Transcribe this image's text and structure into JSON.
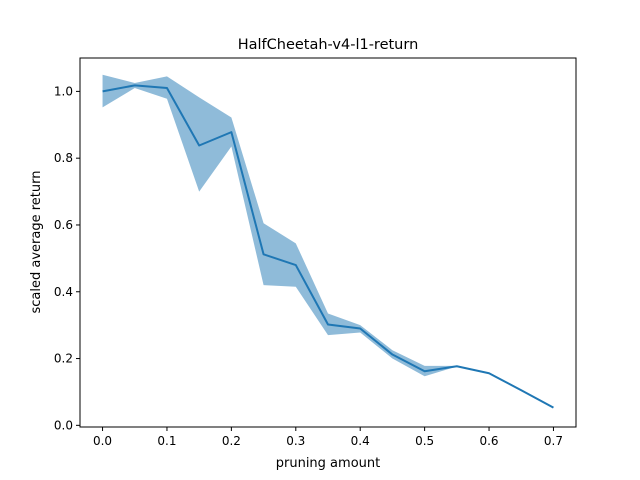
{
  "chart_data": {
    "type": "line",
    "title": "HalfCheetah-v4-l1-return",
    "xlabel": "pruning amount",
    "ylabel": "scaled average return",
    "xlim": [
      -0.035,
      0.735
    ],
    "ylim": [
      -0.005,
      1.1
    ],
    "xticks": [
      {
        "value": 0.0,
        "label": "0.0"
      },
      {
        "value": 0.1,
        "label": "0.1"
      },
      {
        "value": 0.2,
        "label": "0.2"
      },
      {
        "value": 0.3,
        "label": "0.3"
      },
      {
        "value": 0.4,
        "label": "0.4"
      },
      {
        "value": 0.5,
        "label": "0.5"
      },
      {
        "value": 0.6,
        "label": "0.6"
      },
      {
        "value": 0.7,
        "label": "0.7"
      }
    ],
    "yticks": [
      {
        "value": 0.0,
        "label": "0.0"
      },
      {
        "value": 0.2,
        "label": "0.2"
      },
      {
        "value": 0.4,
        "label": "0.4"
      },
      {
        "value": 0.6,
        "label": "0.6"
      },
      {
        "value": 0.8,
        "label": "0.8"
      },
      {
        "value": 1.0,
        "label": "1.0"
      }
    ],
    "grid": false,
    "legend": "none",
    "x": [
      0.0,
      0.05,
      0.1,
      0.15,
      0.2,
      0.25,
      0.3,
      0.35,
      0.4,
      0.45,
      0.5,
      0.55,
      0.6,
      0.65,
      0.7
    ],
    "series": [
      {
        "color": "#1f77b4",
        "values": [
          1.0,
          1.018,
          1.01,
          0.838,
          0.878,
          0.512,
          0.48,
          0.302,
          0.29,
          0.212,
          0.162,
          0.177,
          0.156,
          0.105,
          0.053
        ],
        "band_upper": [
          1.05,
          1.025,
          1.045,
          0.982,
          0.922,
          0.605,
          0.545,
          0.335,
          0.3,
          0.225,
          0.178,
          0.178,
          0.156,
          0.105,
          0.053
        ],
        "band_lower": [
          0.952,
          1.01,
          0.978,
          0.7,
          0.835,
          0.42,
          0.415,
          0.27,
          0.278,
          0.2,
          0.147,
          0.176,
          0.156,
          0.105,
          0.053
        ],
        "band_color": "#1f77b4",
        "band_opacity": 0.5
      }
    ]
  }
}
